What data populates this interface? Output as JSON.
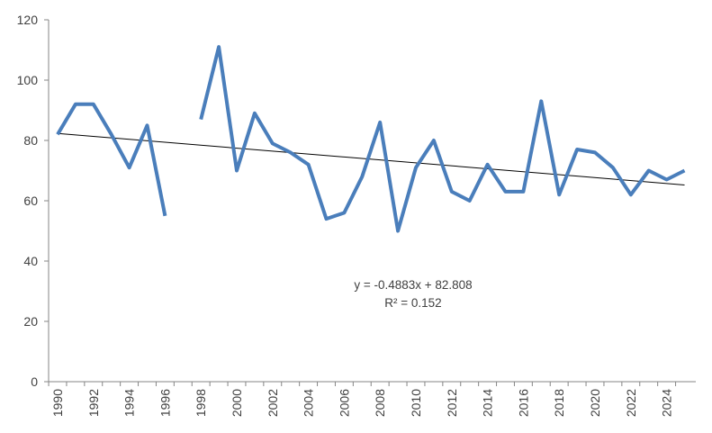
{
  "chart_data": {
    "type": "line",
    "title": "",
    "xlabel": "",
    "ylabel": "",
    "xlim": [
      1990,
      2025
    ],
    "ylim": [
      0,
      120
    ],
    "grid": false,
    "legend": "none",
    "y_ticks": [
      0,
      20,
      40,
      60,
      80,
      100,
      120
    ],
    "x_ticks": [
      1990,
      1992,
      1994,
      1996,
      1998,
      2000,
      2002,
      2004,
      2006,
      2008,
      2010,
      2012,
      2014,
      2016,
      2018,
      2020,
      2022,
      2024
    ],
    "x_tick_labels": [
      "1990",
      "1992",
      "1994",
      "1996",
      "1998",
      "2000",
      "2002",
      "2004",
      "2006",
      "2008",
      "2010",
      "2012",
      "2014",
      "2016",
      "2018",
      "2020",
      "2022",
      "2024"
    ],
    "y_tick_labels": [
      "0",
      "20",
      "40",
      "60",
      "80",
      "100",
      "120"
    ],
    "series": [
      {
        "color": "#4a7ebb",
        "x": [
          1990,
          1991,
          1992,
          1993,
          1994,
          1995,
          1996,
          1997,
          1998,
          1999,
          2000,
          2001,
          2002,
          2003,
          2004,
          2005,
          2006,
          2007,
          2008,
          2009,
          2010,
          2011,
          2012,
          2013,
          2014,
          2015,
          2016,
          2017,
          2018,
          2019,
          2020,
          2021,
          2022,
          2023,
          2024,
          2025
        ],
        "values": [
          82,
          92,
          92,
          82,
          71,
          85,
          55,
          null,
          87,
          111,
          70,
          89,
          79,
          76,
          72,
          54,
          56,
          68,
          86,
          50,
          71,
          80,
          63,
          60,
          72,
          63,
          63,
          93,
          62,
          77,
          76,
          71,
          62,
          70,
          67,
          70
        ]
      }
    ],
    "trendline": {
      "type": "linear",
      "slope": -0.4883,
      "intercept": 82.808,
      "color": "#000000",
      "equation_label": "y = -0.4883x + 82.808",
      "r2_label": "R² = 0.152"
    }
  }
}
